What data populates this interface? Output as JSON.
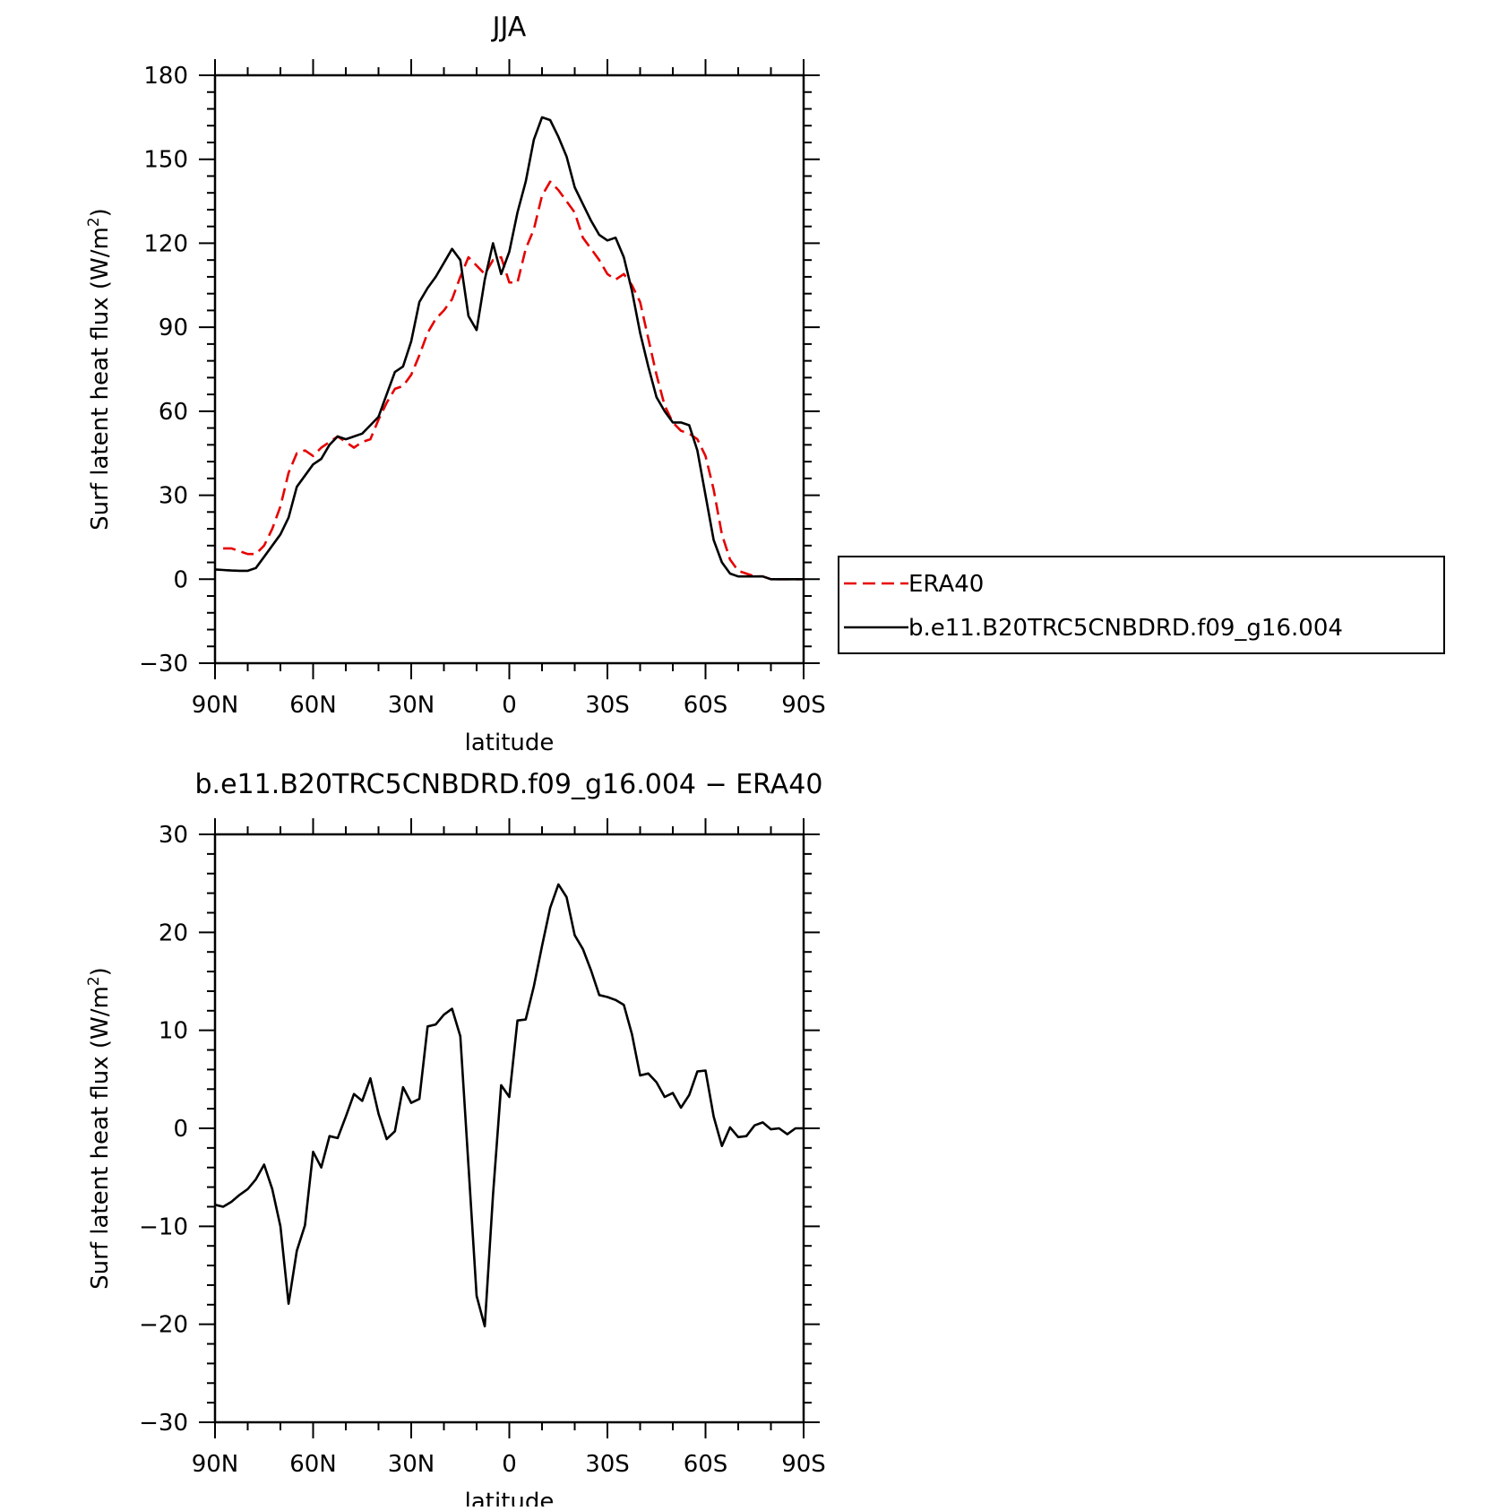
{
  "chart_data": [
    {
      "type": "line",
      "title": "JJA",
      "xlabel": "latitude",
      "ylabel": "Surf latent heat flux (W/m²)",
      "ylabel_main": "Surf latent heat flux (W/m",
      "ylabel_sup": "2",
      "ylabel_close": ")",
      "ylim": [
        -30,
        180
      ],
      "yticks": [
        -30,
        0,
        30,
        60,
        90,
        120,
        150,
        180
      ],
      "ytick_labels": [
        "−30",
        "0",
        "30",
        "60",
        "90",
        "120",
        "150",
        "180"
      ],
      "xlim": [
        90,
        -90
      ],
      "xticks": [
        90,
        60,
        30,
        0,
        -30,
        -60,
        -90
      ],
      "xtick_labels": [
        "90N",
        "60N",
        "30N",
        "0",
        "30S",
        "60S",
        "90S"
      ],
      "legend_position": "right",
      "series": [
        {
          "name": "ERA40",
          "color": "#e60000",
          "dash": "dashed",
          "x": [
            87.5,
            85,
            82.5,
            80,
            77.5,
            75,
            72.5,
            70,
            67.5,
            65,
            62.5,
            60,
            57.5,
            55,
            52.5,
            50,
            47.5,
            45,
            42.5,
            40,
            37.5,
            35,
            32.5,
            30,
            27.5,
            25,
            22.5,
            20,
            17.5,
            15,
            12.5,
            10,
            7.5,
            5,
            2.5,
            0,
            -2.5,
            -5,
            -7.5,
            -10,
            -12.5,
            -15,
            -17.5,
            -20,
            -22.5,
            -25,
            -27.5,
            -30,
            -32.5,
            -35,
            -37.5,
            -40,
            -42.5,
            -45,
            -47.5,
            -50,
            -52.5,
            -55,
            -57.5,
            -60,
            -62.5,
            -65,
            -67.5,
            -70,
            -72.5,
            -75,
            -77.5,
            -80,
            -82.5,
            -85,
            -87.5,
            -90
          ],
          "values": [
            11,
            11,
            10,
            9,
            9,
            12,
            18,
            26,
            38,
            45,
            46,
            44,
            47,
            49,
            51,
            49,
            47,
            49,
            50,
            57,
            63,
            68,
            69,
            73,
            80,
            88,
            93,
            96,
            100,
            108,
            115,
            112,
            109,
            114,
            115,
            106,
            106,
            118,
            125,
            137,
            142,
            139,
            135,
            131,
            122,
            118,
            114,
            109,
            107,
            109,
            105,
            99,
            86,
            73,
            62,
            56,
            53,
            52,
            50,
            44,
            32,
            16,
            7,
            3,
            2,
            1,
            1,
            0,
            0,
            0,
            0,
            0
          ],
          "source_note": ""
        },
        {
          "name": "b.e11.B20TRC5CNBDRD.f09_g16.004",
          "color": "#000000",
          "dash": "solid",
          "x": [
            90,
            87.5,
            85,
            82.5,
            80,
            77.5,
            75,
            72.5,
            70,
            67.5,
            65,
            62.5,
            60,
            57.5,
            55,
            52.5,
            50,
            47.5,
            45,
            42.5,
            40,
            37.5,
            35,
            32.5,
            30,
            27.5,
            25,
            22.5,
            20,
            17.5,
            15,
            12.5,
            10,
            7.5,
            5,
            2.5,
            0,
            -2.5,
            -5,
            -7.5,
            -10,
            -12.5,
            -15,
            -17.5,
            -20,
            -22.5,
            -25,
            -27.5,
            -30,
            -32.5,
            -35,
            -37.5,
            -40,
            -42.5,
            -45,
            -47.5,
            -50,
            -52.5,
            -55,
            -57.5,
            -60,
            -62.5,
            -65,
            -67.5,
            -70,
            -72.5,
            -75,
            -77.5,
            -80,
            -82.5,
            -85,
            -87.5,
            -90
          ],
          "values": [
            3.5,
            3.3,
            3.1,
            3.0,
            3.0,
            4.0,
            8,
            12,
            16,
            22,
            33,
            37,
            41,
            43,
            48,
            51,
            50,
            51,
            52,
            55,
            58,
            66,
            74,
            76,
            85,
            99,
            104,
            108,
            113,
            118,
            114,
            94,
            89,
            107,
            120,
            109,
            117,
            131,
            142,
            157,
            165,
            164,
            158,
            151,
            140,
            134,
            128,
            123,
            121,
            122,
            115,
            103,
            88,
            76,
            65,
            60,
            56,
            56,
            55,
            46,
            30,
            14,
            6,
            2,
            1,
            1,
            1,
            1,
            0,
            0,
            0,
            0,
            0
          ]
        }
      ]
    },
    {
      "type": "line",
      "title": "b.e11.B20TRC5CNBDRD.f09_g16.004 − ERA40",
      "xlabel": "latitude",
      "ylabel_main": "Surf latent heat flux (W/m",
      "ylabel_sup": "2",
      "ylabel_close": ")",
      "ylim": [
        -30,
        30
      ],
      "yticks": [
        -30,
        -20,
        -10,
        0,
        10,
        20,
        30
      ],
      "ytick_labels": [
        "−30",
        "−20",
        "−10",
        "0",
        "10",
        "20",
        "30"
      ],
      "xlim": [
        90,
        -90
      ],
      "xticks": [
        90,
        60,
        30,
        0,
        -30,
        -60,
        -90
      ],
      "xtick_labels": [
        "90N",
        "60N",
        "30N",
        "0",
        "30S",
        "60S",
        "90S"
      ],
      "series": [
        {
          "color": "#000000",
          "dash": "solid",
          "x": [
            90,
            87.5,
            85,
            82.5,
            80,
            77.5,
            75,
            72.5,
            70,
            67.5,
            65,
            62.5,
            60,
            57.5,
            55,
            52.5,
            50,
            47.5,
            45,
            42.5,
            40,
            37.5,
            35,
            32.5,
            30,
            27.5,
            25,
            22.5,
            20,
            17.5,
            15,
            12.5,
            10,
            7.5,
            5,
            2.5,
            0,
            -2.5,
            -5,
            -7.5,
            -10,
            -12.5,
            -15,
            -17.5,
            -20,
            -22.5,
            -25,
            -27.5,
            -30,
            -32.5,
            -35,
            -37.5,
            -40,
            -42.5,
            -45,
            -47.5,
            -50,
            -52.5,
            -55,
            -57.5,
            -60,
            -62.5,
            -65,
            -67.5,
            -70,
            -72.5,
            -75,
            -77.5,
            -80,
            -82.5,
            -85,
            -87.5,
            -90
          ],
          "values": [
            -7.8,
            -8.0,
            -7.5,
            -6.8,
            -6.2,
            -5.2,
            -3.7,
            -6.2,
            -10.0,
            -17.9,
            -12.5,
            -9.9,
            -2.4,
            -4.0,
            -0.8,
            -1.0,
            1.2,
            3.5,
            2.8,
            5.1,
            1.5,
            -1.1,
            -0.3,
            4.2,
            2.6,
            3.0,
            10.4,
            10.6,
            11.6,
            12.2,
            9.4,
            -3.8,
            -17.1,
            -20.2,
            -6.8,
            4.4,
            3.2,
            11.0,
            11.1,
            14.5,
            18.6,
            22.5,
            24.9,
            23.6,
            19.7,
            18.3,
            16.1,
            13.6,
            13.4,
            13.1,
            12.6,
            9.6,
            5.4,
            5.6,
            4.7,
            3.2,
            3.6,
            2.1,
            3.4,
            5.8,
            5.9,
            1.2,
            -1.8,
            0.1,
            -0.9,
            -0.8,
            0.3,
            0.6,
            -0.1,
            0.0,
            -0.6,
            0.0,
            0.0
          ]
        }
      ]
    }
  ]
}
